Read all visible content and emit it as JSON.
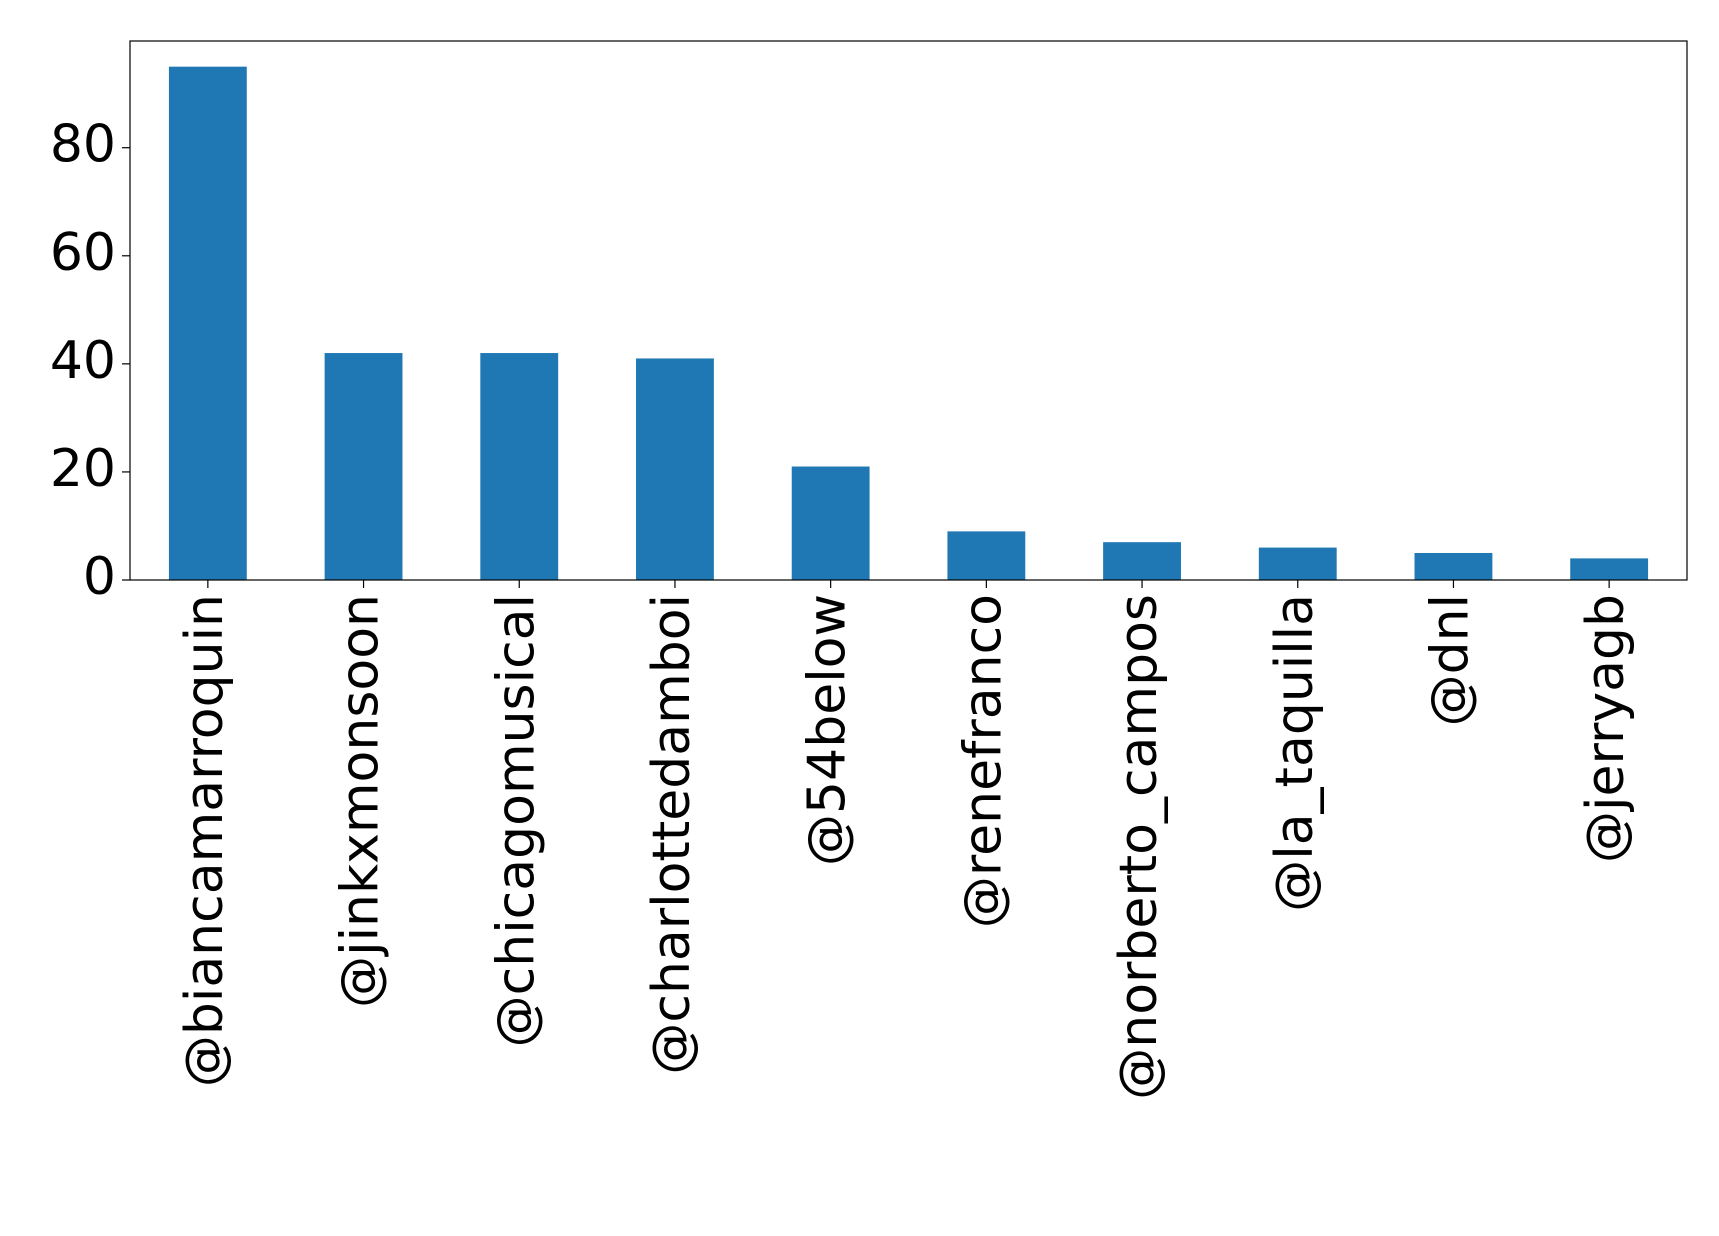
{
  "chart_data": {
    "type": "bar",
    "categories": [
      "@biancamarroquin",
      "@jinkxmonsoon",
      "@chicagomusical",
      "@charlottedamboi",
      "@54below",
      "@renefranco",
      "@norberto_campos",
      "@la_taquilla",
      "@dnl",
      "@jerryagb"
    ],
    "values": [
      95,
      42,
      42,
      41,
      21,
      9,
      7,
      6,
      5,
      4
    ],
    "color": "#1f77b4",
    "ylim": [
      0,
      99.75
    ],
    "yticks": [
      0,
      20,
      40,
      60,
      80
    ],
    "grid": false
  }
}
